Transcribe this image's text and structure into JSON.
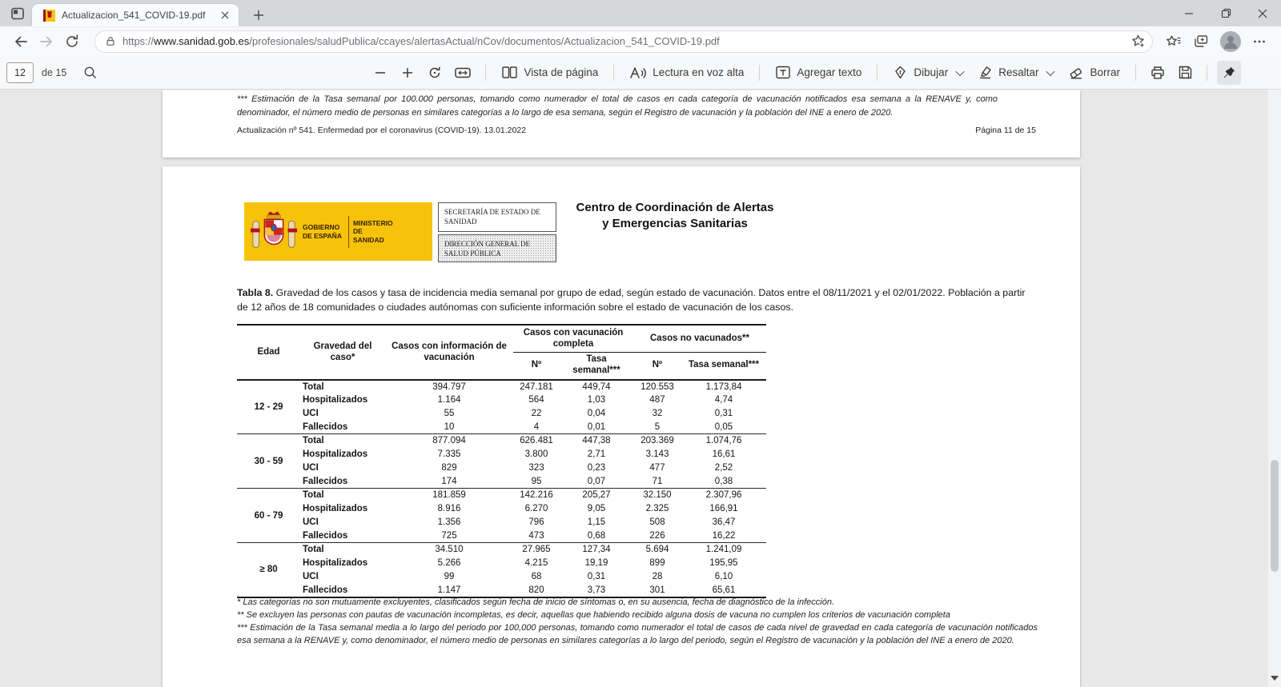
{
  "browser": {
    "tab_title": "Actualizacion_541_COVID-19.pdf",
    "url_scheme": "https://",
    "url_domain": "www.sanidad.gob.es",
    "url_path": "/profesionales/saludPublica/ccayes/alertasActual/nCov/documentos/Actualizacion_541_COVID-19.pdf"
  },
  "pdf_toolbar": {
    "page_number": "12",
    "page_total": "de 15",
    "view_label": "Vista de página",
    "read_aloud_label": "Lectura en voz alta",
    "add_text_label": "Agregar texto",
    "draw_label": "Dibujar",
    "highlight_label": "Resaltar",
    "erase_label": "Borrar"
  },
  "page11": {
    "footnote": "*** Estimación de la Tasa semanal por 100.000 personas, tomando como numerador el total de casos en cada categoría de vacunación notificados esa semana a la RENAVE y, como denominador, el número medio de personas en similares categorías a lo largo de esa semana, según el Registro de vacunación y la población del INE a enero de 2020.",
    "footer_left": "Actualización nº 541. Enfermedad por el coronavirus (COVID-19). 13.01.2022",
    "footer_right": "Página 11 de 15"
  },
  "page12": {
    "logo": {
      "gobierno": "GOBIERNO DE ESPAÑA",
      "ministerio": "MINISTERIO DE SANIDAD",
      "secretaria": "SECRETARÍA DE ESTADO DE SANIDAD",
      "direccion": "DIRECCIÓN GENERAL DE SALUD PÚBLICA"
    },
    "org_line1": "Centro de Coordinación de Alertas",
    "org_line2": "y Emergencias Sanitarias",
    "caption_bold": "Tabla 8.",
    "caption_rest": " Gravedad de los casos y tasa de incidencia media semanal por grupo de edad, según estado de vacunación. Datos entre el 08/11/2021 y el 02/01/2022. Población a partir de 12 años de 18 comunidades o ciudades autónomas con suficiente información sobre el estado de vacunación de los casos.",
    "table": {
      "headers": {
        "edad": "Edad",
        "gravedad": "Gravedad del caso*",
        "casos_info": "Casos con información de vacunación",
        "vac_completa": "Casos con vacunación completa",
        "no_vacunados": "Casos no vacunados**",
        "n": "Nº",
        "tasa": "Tasa semanal***"
      },
      "groups": [
        {
          "edad": "12 - 29",
          "rows": [
            [
              "Total",
              "394.797",
              "247.181",
              "449,74",
              "120.553",
              "1.173,84"
            ],
            [
              "Hospitalizados",
              "1.164",
              "564",
              "1,03",
              "487",
              "4,74"
            ],
            [
              "UCI",
              "55",
              "22",
              "0,04",
              "32",
              "0,31"
            ],
            [
              "Fallecidos",
              "10",
              "4",
              "0,01",
              "5",
              "0,05"
            ]
          ]
        },
        {
          "edad": "30 - 59",
          "rows": [
            [
              "Total",
              "877.094",
              "626.481",
              "447,38",
              "203.369",
              "1.074,76"
            ],
            [
              "Hospitalizados",
              "7.335",
              "3.800",
              "2,71",
              "3.143",
              "16,61"
            ],
            [
              "UCI",
              "829",
              "323",
              "0,23",
              "477",
              "2,52"
            ],
            [
              "Fallecidos",
              "174",
              "95",
              "0,07",
              "71",
              "0,38"
            ]
          ]
        },
        {
          "edad": "60 - 79",
          "rows": [
            [
              "Total",
              "181.859",
              "142.216",
              "205,27",
              "32.150",
              "2.307,96"
            ],
            [
              "Hospitalizados",
              "8.916",
              "6.270",
              "9,05",
              "2.325",
              "166,91"
            ],
            [
              "UCI",
              "1.356",
              "796",
              "1,15",
              "508",
              "36,47"
            ],
            [
              "Fallecidos",
              "725",
              "473",
              "0,68",
              "226",
              "16,22"
            ]
          ]
        },
        {
          "edad": "≥ 80",
          "rows": [
            [
              "Total",
              "34.510",
              "27.965",
              "127,34",
              "5.694",
              "1.241,09"
            ],
            [
              "Hospitalizados",
              "5.266",
              "4.215",
              "19,19",
              "899",
              "195,95"
            ],
            [
              "UCI",
              "99",
              "68",
              "0,31",
              "28",
              "6,10"
            ],
            [
              "Fallecidos",
              "1.147",
              "820",
              "3,73",
              "301",
              "65,61"
            ]
          ]
        }
      ]
    },
    "footnotes": [
      "* Las categorías no son mutuamente excluyentes, clasificados según fecha de inicio de síntomas o, en su ausencia, fecha de diagnóstico de la infección.",
      "** Se excluyen las personas con pautas de vacunación incompletas, es decir, aquellas que habiendo recibido alguna dosis de vacuna no cumplen los criterios de vacunación completa",
      "*** Estimación de la Tasa semanal media a lo largo del periodo por 100,000 personas, tomando como numerador el total de casos de cada nivel de gravedad en cada categoría de vacunación notificados esa semana a la RENAVE y, como denominador, el número medio de personas en similares categorías a lo largo del periodo, según el Registro de vacunación y la población del INE a enero de 2020."
    ]
  },
  "colors": {
    "brand_yellow": "#f7c20b",
    "flag_red": "#b5121b"
  }
}
